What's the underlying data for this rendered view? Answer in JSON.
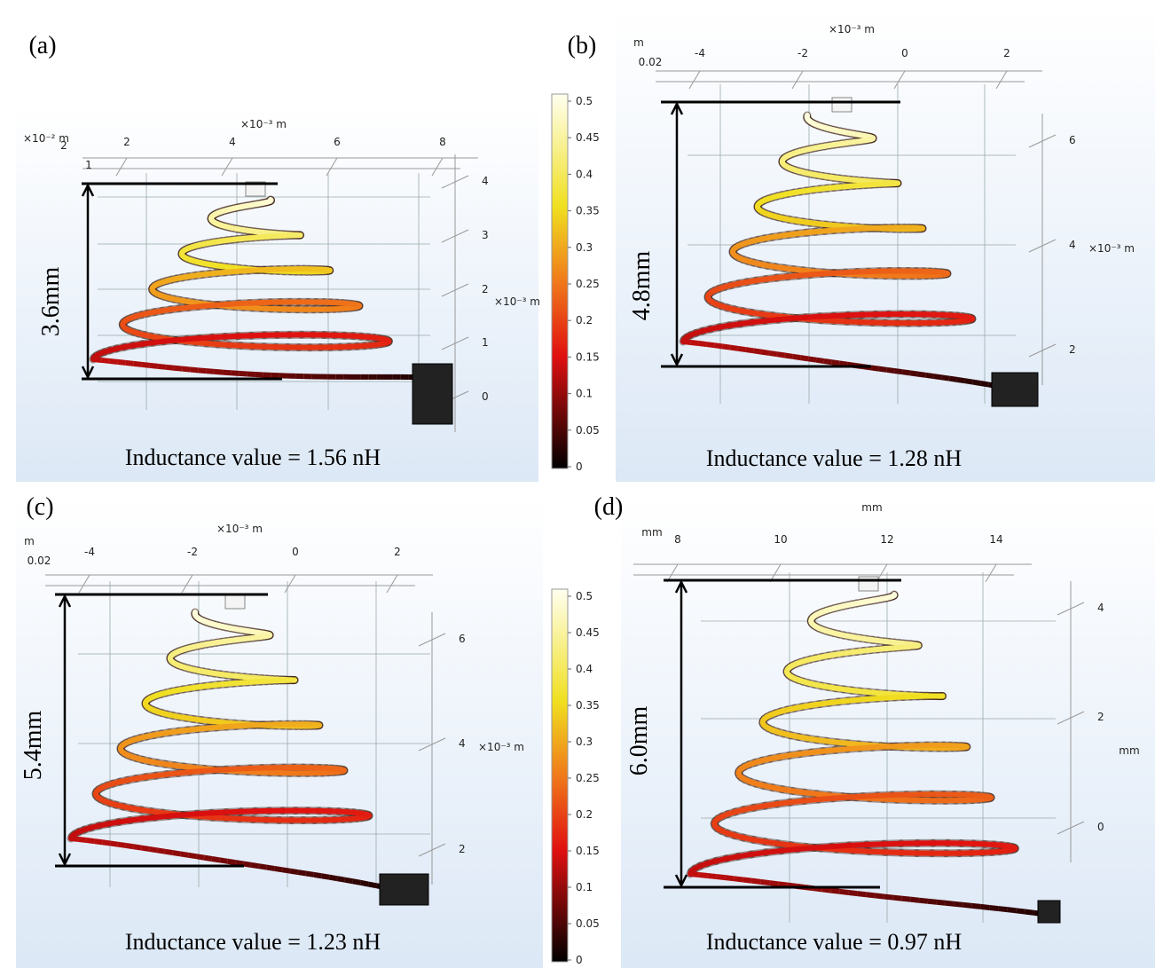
{
  "panels": [
    {
      "label": "(a)",
      "top_unit": "×10⁻³ m",
      "top_ticks": [
        "2",
        "4",
        "6",
        "8"
      ],
      "corner_labels": [
        "×10⁻² m",
        "2",
        "1"
      ],
      "right_ticks": [
        "4",
        "3",
        "2",
        "1",
        "0"
      ],
      "right_unit": "×10⁻³ m",
      "height_label": "3.6mm",
      "caption": "Inductance value = 1.56 nH"
    },
    {
      "label": "(b)",
      "top_unit": "×10⁻³ m",
      "top_ticks": [
        "-4",
        "-2",
        "0",
        "2"
      ],
      "corner_labels": [
        "m",
        "0.02"
      ],
      "right_ticks": [
        "6",
        "4",
        "2"
      ],
      "right_unit": "×10⁻³ m",
      "height_label": "4.8mm",
      "caption": "Inductance value = 1.28 nH"
    },
    {
      "label": "(c)",
      "top_unit": "×10⁻³ m",
      "top_ticks": [
        "-4",
        "-2",
        "0",
        "2"
      ],
      "corner_labels": [
        "m",
        "0.02"
      ],
      "right_ticks": [
        "6",
        "4",
        "2"
      ],
      "right_unit": "×10⁻³ m",
      "height_label": "5.4mm",
      "caption": "Inductance value = 1.23 nH"
    },
    {
      "label": "(d)",
      "top_unit": "mm",
      "top_ticks": [
        "8",
        "10",
        "12",
        "14"
      ],
      "corner_labels": [
        "mm"
      ],
      "right_ticks": [
        "4",
        "2",
        "0"
      ],
      "right_unit": "mm",
      "height_label": "6.0mm",
      "caption": "Inductance value = 0.97 nH"
    }
  ],
  "colorbars": [
    {
      "ticks": [
        "0.5",
        "0.45",
        "0.4",
        "0.35",
        "0.3",
        "0.25",
        "0.2",
        "0.15",
        "0.1",
        "0.05",
        "0"
      ]
    },
    {
      "ticks": [
        "0.5",
        "0.45",
        "0.4",
        "0.35",
        "0.3",
        "0.25",
        "0.2",
        "0.15",
        "0.1",
        "0.05",
        "0"
      ]
    }
  ]
}
